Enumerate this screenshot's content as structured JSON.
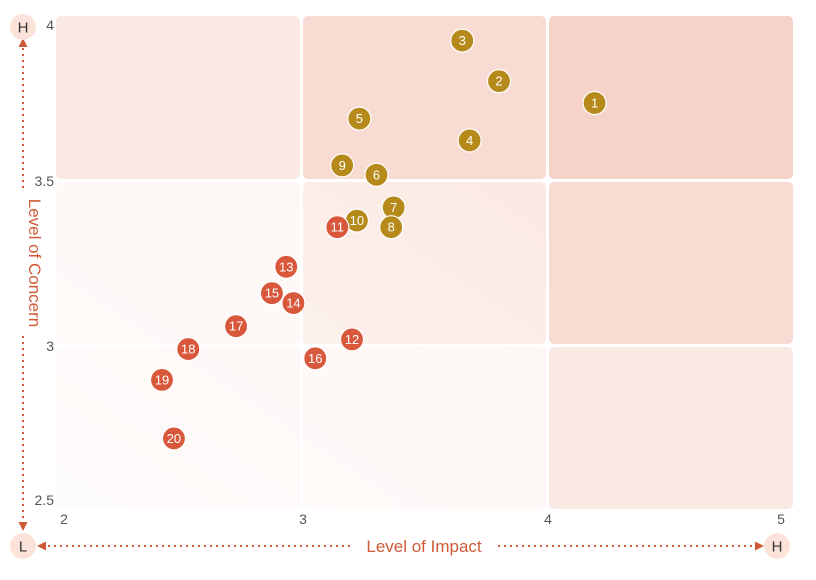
{
  "chart_data": {
    "type": "scatter",
    "title": "",
    "xlabel": "Level of Impact",
    "ylabel": "Level of Concern",
    "xlim": [
      2,
      5
    ],
    "ylim": [
      2.5,
      4
    ],
    "x_ticks": [
      "2",
      "3",
      "4",
      "5"
    ],
    "y_ticks": [
      "2.5",
      "3",
      "3.5",
      "4"
    ],
    "x_start_label": "L",
    "x_end_label": "H",
    "y_start_label": "L",
    "y_end_label": "H",
    "grid": true,
    "colors": {
      "group_high": "#b58a1b",
      "group_low": "#d9573a",
      "axis": "#cf5a36",
      "cell_low": "#fdf5f2",
      "cell_mid": "#fbe9e3",
      "cell_high": "#f8dcd3",
      "cell_top": "#f6d3c8"
    },
    "points": [
      {
        "label": "1",
        "x": 4.2,
        "y": 3.75,
        "group": "high"
      },
      {
        "label": "2",
        "x": 3.8,
        "y": 3.82,
        "group": "high"
      },
      {
        "label": "3",
        "x": 3.65,
        "y": 3.95,
        "group": "high"
      },
      {
        "label": "4",
        "x": 3.68,
        "y": 3.63,
        "group": "high"
      },
      {
        "label": "5",
        "x": 3.23,
        "y": 3.7,
        "group": "high"
      },
      {
        "label": "6",
        "x": 3.3,
        "y": 3.52,
        "group": "high"
      },
      {
        "label": "7",
        "x": 3.37,
        "y": 3.42,
        "group": "high"
      },
      {
        "label": "8",
        "x": 3.36,
        "y": 3.36,
        "group": "high"
      },
      {
        "label": "9",
        "x": 3.16,
        "y": 3.55,
        "group": "high"
      },
      {
        "label": "10",
        "x": 3.22,
        "y": 3.38,
        "group": "high"
      },
      {
        "label": "11",
        "x": 3.14,
        "y": 3.36,
        "group": "low"
      },
      {
        "label": "12",
        "x": 3.2,
        "y": 3.02,
        "group": "low"
      },
      {
        "label": "13",
        "x": 2.93,
        "y": 3.24,
        "group": "low"
      },
      {
        "label": "14",
        "x": 2.96,
        "y": 3.13,
        "group": "low"
      },
      {
        "label": "15",
        "x": 2.87,
        "y": 3.16,
        "group": "low"
      },
      {
        "label": "16",
        "x": 3.05,
        "y": 2.96,
        "group": "low"
      },
      {
        "label": "17",
        "x": 2.72,
        "y": 3.06,
        "group": "low"
      },
      {
        "label": "18",
        "x": 2.52,
        "y": 2.99,
        "group": "low"
      },
      {
        "label": "19",
        "x": 2.41,
        "y": 2.89,
        "group": "low"
      },
      {
        "label": "20",
        "x": 2.46,
        "y": 2.7,
        "group": "low"
      }
    ]
  }
}
